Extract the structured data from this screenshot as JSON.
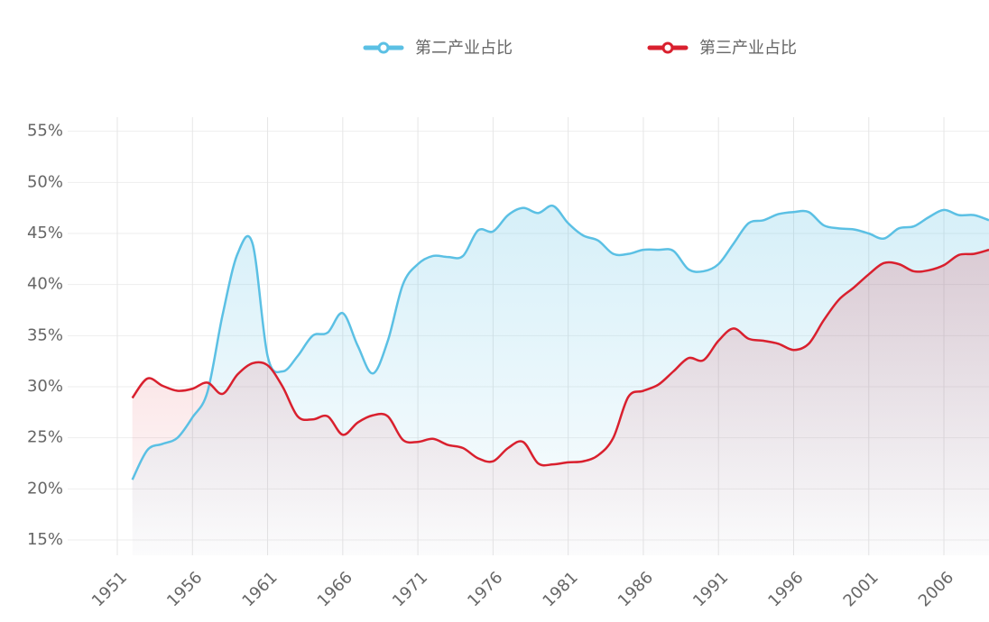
{
  "chart_data": {
    "type": "line",
    "x": [
      1952,
      1953,
      1954,
      1955,
      1956,
      1957,
      1958,
      1959,
      1960,
      1961,
      1962,
      1963,
      1964,
      1965,
      1966,
      1967,
      1968,
      1969,
      1970,
      1971,
      1972,
      1973,
      1974,
      1975,
      1976,
      1977,
      1978,
      1979,
      1980,
      1981,
      1982,
      1983,
      1984,
      1985,
      1986,
      1987,
      1988,
      1989,
      1990,
      1991,
      1992,
      1993,
      1994,
      1995,
      1996,
      1997,
      1998,
      1999,
      2000,
      2001,
      2002,
      2003,
      2004,
      2005,
      2006,
      2007,
      2008,
      2009
    ],
    "series": [
      {
        "name": "第二产业占比",
        "color": "#5bc0e4",
        "values": [
          20.9,
          23.8,
          24.4,
          25,
          27,
          29.5,
          37,
          43,
          44,
          33,
          31.5,
          33,
          35,
          35.3,
          37.2,
          34,
          31.3,
          34.5,
          40,
          42,
          42.8,
          42.7,
          42.8,
          45.3,
          45.2,
          46.8,
          47.5,
          47,
          47.7,
          46,
          44.8,
          44.3,
          43,
          43,
          43.4,
          43.4,
          43.3,
          41.5,
          41.3,
          42,
          44,
          46,
          46.3,
          46.9,
          47.1,
          47.1,
          45.8,
          45.5,
          45.4,
          45,
          44.5,
          45.5,
          45.7,
          46.6,
          47.3,
          46.8,
          46.8,
          46.3
        ]
      },
      {
        "name": "第三产业占比",
        "color": "#d9202e",
        "values": [
          28.9,
          30.8,
          30.1,
          29.6,
          29.8,
          30.4,
          29.3,
          31.2,
          32.3,
          32.1,
          30,
          27.1,
          26.8,
          27.1,
          25.3,
          26.5,
          27.2,
          27.1,
          24.8,
          24.6,
          24.9,
          24.3,
          24,
          23,
          22.7,
          24,
          24.6,
          22.5,
          22.4,
          22.6,
          22.7,
          23.3,
          25,
          29,
          29.6,
          30.2,
          31.5,
          32.8,
          32.6,
          34.5,
          35.7,
          34.7,
          34.5,
          34.2,
          33.6,
          34.2,
          36.5,
          38.5,
          39.7,
          41,
          42.1,
          42,
          41.3,
          41.4,
          41.9,
          42.9,
          43,
          43.4
        ]
      }
    ],
    "xlim": [
      1951,
      2009
    ],
    "xticks": [
      1951,
      1956,
      1961,
      1966,
      1971,
      1976,
      1981,
      1986,
      1991,
      1996,
      2001,
      2006
    ],
    "ylim": [
      13.5,
      57
    ],
    "yticks": [
      {
        "value": 15,
        "label": "15%"
      },
      {
        "value": 20,
        "label": "20%"
      },
      {
        "value": 25,
        "label": "25%"
      },
      {
        "value": 30,
        "label": "30%"
      },
      {
        "value": 35,
        "label": "35%"
      },
      {
        "value": 40,
        "label": "40%"
      },
      {
        "value": 45,
        "label": "45%"
      },
      {
        "value": 50,
        "label": "50%"
      },
      {
        "value": 55,
        "label": "55%"
      }
    ],
    "grid": true,
    "legend": "top"
  }
}
